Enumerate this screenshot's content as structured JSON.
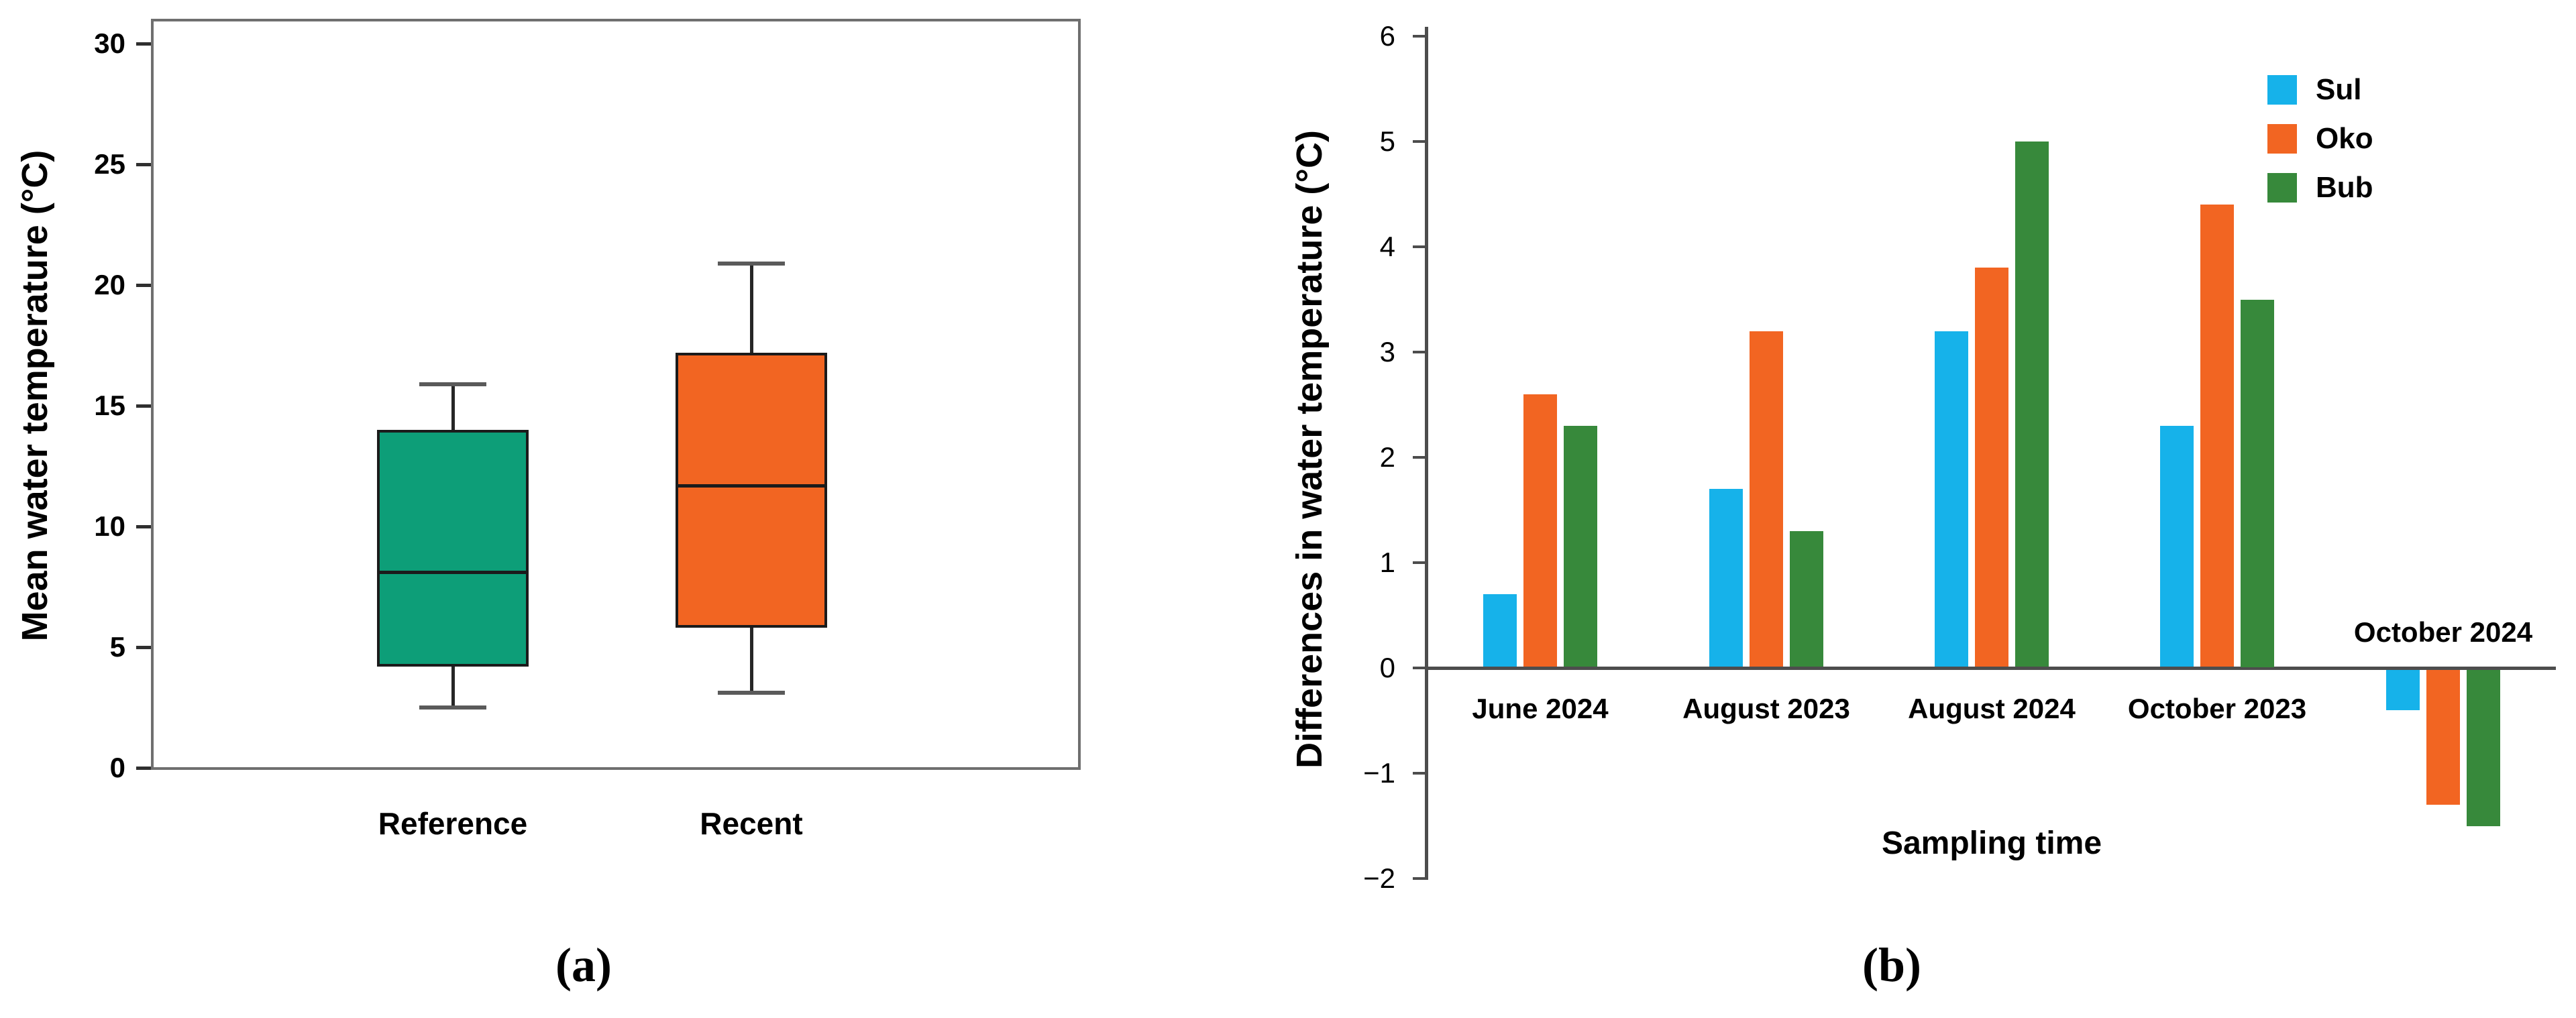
{
  "figure": {
    "background": "#FFFFFF",
    "panel_a_label": "(a)",
    "panel_b_label": "(b)"
  },
  "chart_data": [
    {
      "type": "boxplot",
      "panel": "(a)",
      "ylabel": "Mean water temperature (°C)",
      "ylim": [
        0,
        30
      ],
      "yticks": [
        0,
        5,
        10,
        15,
        20,
        25,
        30
      ],
      "grid": false,
      "frame": true,
      "legend_position": "none",
      "categories": [
        "Reference",
        "Recent"
      ],
      "series": [
        {
          "name": "Reference",
          "color": "#0D9E78",
          "whisker_low": 2.5,
          "q1": 4.2,
          "median": 8.1,
          "q3": 14.0,
          "whisker_high": 15.9
        },
        {
          "name": "Recent",
          "color": "#F26522",
          "whisker_low": 3.1,
          "q1": 5.8,
          "median": 11.7,
          "q3": 17.2,
          "whisker_high": 20.9
        }
      ]
    },
    {
      "type": "bar",
      "panel": "(b)",
      "ylabel": "Differences in water temperature (°C)",
      "xlabel": "Sampling time",
      "ylim": [
        -2,
        6
      ],
      "yticks": [
        6,
        5,
        4,
        3,
        2,
        1,
        0,
        -1,
        -2
      ],
      "grid": false,
      "legend_position": "top-right",
      "categories": [
        "June 2024",
        "August 2023",
        "August 2024",
        "October 2023",
        "October 2024"
      ],
      "series": [
        {
          "name": "Sul",
          "color": "#16B2EA",
          "values": [
            0.7,
            1.7,
            3.2,
            2.3,
            -0.4
          ]
        },
        {
          "name": "Oko",
          "color": "#F26522",
          "values": [
            2.6,
            3.2,
            3.8,
            4.4,
            -1.3
          ]
        },
        {
          "name": "Bub",
          "color": "#37893B",
          "values": [
            2.3,
            1.3,
            5.0,
            3.5,
            -1.5
          ]
        }
      ]
    }
  ]
}
